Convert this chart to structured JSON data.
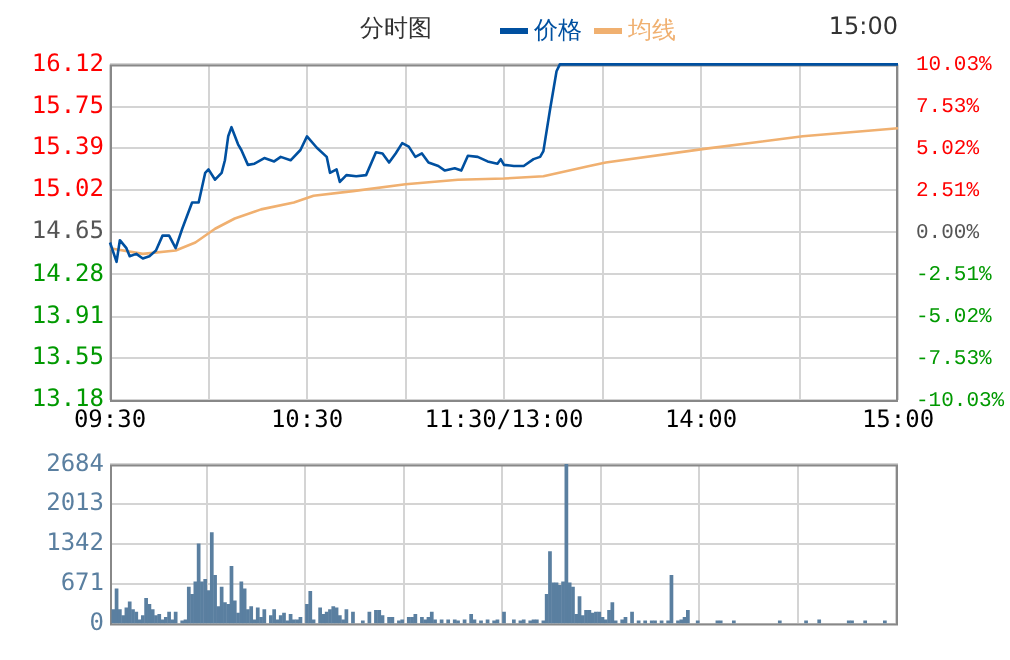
{
  "chart_data": [
    {
      "type": "line",
      "title": "分时图",
      "annotations": [
        "15:00"
      ],
      "legend": "top",
      "grid": true,
      "categories": [
        "09:30",
        null,
        null,
        null,
        null,
        null,
        null,
        null,
        null,
        null,
        null,
        null,
        null,
        null,
        null,
        null,
        null,
        null,
        null,
        null,
        null,
        null,
        null,
        null,
        null,
        null,
        null,
        null,
        null,
        null,
        null,
        null,
        null,
        null,
        null,
        null,
        null,
        null,
        null,
        null,
        null,
        null,
        null,
        null,
        null,
        null,
        null,
        null,
        null,
        null,
        null,
        null,
        null,
        null,
        null,
        null,
        null,
        null,
        null,
        null,
        "10:30",
        null,
        null,
        null,
        null,
        null,
        null,
        null,
        null,
        null,
        null,
        null,
        null,
        null,
        null,
        null,
        null,
        null,
        null,
        null,
        null,
        null,
        null,
        null,
        null,
        null,
        null,
        null,
        null,
        null,
        null,
        null,
        null,
        null,
        null,
        null,
        null,
        null,
        null,
        null,
        null,
        null,
        null,
        null,
        null,
        null,
        null,
        null,
        null,
        null,
        null,
        null,
        null,
        null,
        null,
        null,
        null,
        null,
        null,
        null,
        "11:30/13:00",
        null,
        null,
        null,
        null,
        null,
        null,
        null,
        null,
        null,
        null,
        null,
        null,
        null,
        null,
        null,
        null,
        null,
        null,
        null,
        null,
        null,
        null,
        null,
        null,
        null,
        null,
        null,
        null,
        null,
        null,
        null,
        null,
        null,
        null,
        null,
        null,
        null,
        null,
        null,
        null,
        null,
        null,
        null,
        null,
        null,
        null,
        null,
        null,
        null,
        null,
        null,
        null,
        null,
        null,
        null,
        null,
        null,
        null,
        null,
        "14:00",
        null,
        null,
        null,
        null,
        null,
        null,
        null,
        null,
        null,
        null,
        null,
        null,
        null,
        null,
        null,
        null,
        null,
        null,
        null,
        null,
        null,
        null,
        null,
        null,
        null,
        null,
        null,
        null,
        null,
        null,
        null,
        null,
        null,
        null,
        null,
        null,
        null,
        null,
        null,
        null,
        null,
        null,
        null,
        null,
        null,
        null,
        null,
        null,
        null,
        null,
        null,
        null,
        null,
        null,
        null,
        null,
        null,
        null,
        null,
        "15:00"
      ],
      "ylim": [
        13.18,
        16.12
      ],
      "yticks": [
        13.18,
        13.55,
        13.91,
        14.28,
        14.65,
        15.02,
        15.39,
        15.75,
        16.12
      ],
      "y2lim": [
        -10.03,
        10.03
      ],
      "y2ticks": [
        {
          "value": -10.03,
          "label": "-10.03%"
        },
        {
          "value": -7.53,
          "label": "-7.53%"
        },
        {
          "value": -5.02,
          "label": "-5.02%"
        },
        {
          "value": -2.51,
          "label": "-2.51%"
        },
        {
          "value": 0,
          "label": "0.00%"
        },
        {
          "value": 2.51,
          "label": "2.51%"
        },
        {
          "value": 5.02,
          "label": "5.02%"
        },
        {
          "value": 7.53,
          "label": "7.53%"
        },
        {
          "value": 10.03,
          "label": "10.03%"
        }
      ],
      "series": [
        {
          "name": "价格",
          "color": "#0050a0",
          "values": [
            14.56,
            null,
            14.39,
            14.58,
            null,
            14.51,
            14.44,
            null,
            14.46,
            null,
            14.42,
            null,
            14.44,
            null,
            14.49,
            null,
            14.62,
            null,
            14.62,
            null,
            14.51,
            null,
            14.68,
            null,
            null,
            14.91,
            null,
            14.91,
            null,
            15.17,
            15.2,
            null,
            15.11,
            null,
            15.17,
            15.28,
            15.49,
            15.57,
            null,
            15.42,
            15.37,
            null,
            15.24,
            null,
            15.25,
            null,
            null,
            15.3,
            null,
            null,
            15.27,
            null,
            15.31,
            null,
            null,
            15.28,
            null,
            null,
            15.37,
            null,
            15.49,
            null,
            null,
            15.39,
            null,
            null,
            15.31,
            15.17,
            null,
            15.2,
            15.09,
            null,
            15.15,
            null,
            null,
            15.14,
            null,
            null,
            15.15,
            null,
            null,
            15.35,
            null,
            15.34,
            null,
            15.26,
            null,
            15.34,
            null,
            15.43,
            null,
            15.4,
            null,
            15.31,
            null,
            15.34,
            null,
            15.26,
            null,
            null,
            15.23,
            null,
            15.19,
            null,
            null,
            15.21,
            null,
            15.19,
            null,
            15.32,
            null,
            null,
            15.31,
            null,
            null,
            15.27,
            null,
            null,
            15.25,
            15.29,
            15.24,
            null,
            null,
            15.23,
            null,
            null,
            15.23,
            null,
            null,
            15.29,
            null,
            15.31,
            15.36,
            null,
            15.72,
            null,
            16.06,
            16.12,
            16.12,
            16.12,
            16.12,
            16.12,
            16.12,
            16.12,
            16.12,
            16.12,
            16.12,
            16.12,
            16.12,
            16.12,
            16.12,
            16.12,
            16.12,
            16.12,
            16.12,
            16.12,
            16.12,
            16.12,
            16.12,
            16.12,
            16.12,
            16.12,
            16.12,
            16.12,
            16.12,
            16.12,
            16.12,
            16.12,
            16.12,
            16.12,
            16.12,
            16.12,
            16.12,
            16.12,
            16.12,
            16.12,
            16.12,
            16.12,
            16.12,
            16.12,
            16.12,
            16.12,
            16.12,
            16.12,
            16.12,
            16.12,
            16.12,
            16.12,
            16.12,
            16.12,
            16.12,
            16.12,
            16.12,
            16.12,
            16.12,
            16.12,
            16.12,
            16.12,
            16.12,
            16.12,
            16.12,
            16.12,
            16.12,
            16.12,
            16.12,
            16.12,
            16.12,
            16.12,
            16.12,
            16.12,
            16.12,
            16.12,
            16.12,
            16.12,
            16.12,
            16.12,
            16.12,
            16.12,
            16.12,
            16.12,
            16.12,
            16.12,
            16.12,
            16.12,
            16.12,
            16.12,
            16.12,
            16.12,
            16.12,
            16.12,
            16.12,
            16.12,
            16.12,
            16.12,
            16.12,
            16.12,
            16.12,
            16.12,
            16.12,
            16.12,
            16.12
          ]
        },
        {
          "name": "均线",
          "color": "#f0b070",
          "values": [
            14.51,
            null,
            null,
            null,
            null,
            null,
            null,
            null,
            null,
            null,
            14.46,
            null,
            null,
            null,
            null,
            null,
            null,
            null,
            null,
            null,
            14.49,
            null,
            null,
            null,
            null,
            null,
            14.56,
            null,
            null,
            null,
            null,
            null,
            14.68,
            null,
            null,
            null,
            null,
            null,
            14.77,
            null,
            null,
            null,
            null,
            null,
            null,
            null,
            14.85,
            null,
            null,
            null,
            null,
            null,
            null,
            null,
            null,
            null,
            14.91,
            null,
            null,
            null,
            null,
            null,
            14.97,
            null,
            null,
            null,
            null,
            null,
            null,
            null,
            null,
            null,
            null,
            null,
            15.01,
            null,
            null,
            null,
            null,
            null,
            null,
            null,
            null,
            null,
            null,
            null,
            null,
            null,
            null,
            null,
            15.07,
            null,
            null,
            null,
            null,
            null,
            null,
            null,
            null,
            null,
            null,
            null,
            null,
            null,
            null,
            null,
            15.11,
            null,
            null,
            null,
            null,
            null,
            null,
            null,
            null,
            null,
            null,
            null,
            null,
            null,
            15.12,
            null,
            null,
            null,
            null,
            null,
            null,
            null,
            null,
            null,
            null,
            null,
            15.14,
            null,
            null,
            null,
            null,
            null,
            null,
            null,
            null,
            null,
            null,
            null,
            null,
            null,
            15.23,
            null,
            null,
            null,
            null,
            15.26,
            null,
            null,
            null,
            null,
            null,
            null,
            null,
            null,
            null,
            null,
            null,
            null,
            null,
            null,
            null,
            null,
            null,
            null,
            null,
            null,
            null,
            null,
            null,
            null,
            null,
            null,
            null,
            null,
            null,
            15.38,
            null,
            null,
            null,
            null,
            null,
            null,
            null,
            null,
            null,
            null,
            null,
            null,
            null,
            null,
            null,
            null,
            null,
            null,
            null,
            null,
            null,
            null,
            null,
            null,
            null,
            null,
            null,
            null,
            null,
            15.49,
            null,
            null,
            null,
            null,
            null,
            null,
            null,
            null,
            null,
            null,
            null,
            null,
            null,
            null,
            null,
            null,
            null,
            null,
            null,
            null,
            null,
            null,
            null,
            null,
            null,
            null,
            null,
            null,
            15.56
          ]
        }
      ]
    },
    {
      "type": "bar",
      "grid": true,
      "tick_labels": "y",
      "color": "#5a7fa0",
      "categories": [
        null,
        null,
        null,
        null,
        null,
        null,
        null,
        null,
        null,
        null,
        null,
        null,
        null,
        null,
        null,
        null,
        null,
        null,
        null,
        null,
        null,
        null,
        null,
        null,
        null,
        null,
        null,
        null,
        null,
        null,
        null,
        null,
        null,
        null,
        null,
        null,
        null,
        null,
        null,
        null,
        null,
        null,
        null,
        null,
        null,
        null,
        null,
        null,
        null,
        null,
        null,
        null,
        null,
        null,
        null,
        null,
        null,
        null,
        null,
        null,
        null,
        null,
        null,
        null,
        null,
        null,
        null,
        null,
        null,
        null,
        null,
        null,
        null,
        null,
        null,
        null,
        null,
        null,
        null,
        null,
        null,
        null,
        null,
        null,
        null,
        null,
        null,
        null,
        null,
        null,
        null,
        null,
        null,
        null,
        null,
        null,
        null,
        null,
        null,
        null,
        null,
        null,
        null,
        null,
        null,
        null,
        null,
        null,
        null,
        null,
        null,
        null,
        null,
        null,
        null,
        null,
        null,
        null,
        null,
        null,
        null,
        null,
        null,
        null,
        null,
        null,
        null,
        null,
        null,
        null,
        null,
        null,
        null,
        null,
        null,
        null,
        null,
        null,
        null,
        null,
        null,
        null,
        null,
        null,
        null,
        null,
        null,
        null,
        null,
        null,
        null,
        null,
        null,
        null,
        null,
        null,
        null,
        null,
        null,
        null,
        null,
        null,
        null,
        null,
        null,
        null,
        null,
        null,
        null,
        null,
        null,
        null,
        null,
        null,
        null,
        null,
        null,
        null,
        null,
        null,
        null,
        null,
        null,
        null,
        null,
        null,
        null,
        null,
        null,
        null,
        null,
        null,
        null,
        null,
        null,
        null,
        null,
        null,
        null,
        null,
        null,
        null,
        null,
        null,
        null,
        null,
        null,
        null,
        null,
        null,
        null,
        null,
        null,
        null,
        null,
        null,
        null,
        null,
        null,
        null,
        null,
        null,
        null,
        null,
        null,
        null,
        null,
        null,
        null,
        null,
        null,
        null,
        null,
        null,
        null,
        null,
        null,
        null,
        null,
        null,
        null
      ],
      "ylim": [
        0,
        2684
      ],
      "yticks": [
        0,
        671,
        1342,
        2013,
        2684
      ],
      "values": [
        null,
        230,
        580,
        230,
        130,
        260,
        360,
        230,
        190,
        60,
        130,
        420,
        320,
        230,
        130,
        150,
        60,
        100,
        190,
        60,
        190,
        null,
        40,
        60,
        610,
        490,
        700,
        1340,
        700,
        740,
        550,
        1530,
        810,
        280,
        610,
        350,
        320,
        960,
        380,
        170,
        700,
        580,
        230,
        280,
        60,
        260,
        100,
        230,
        null,
        130,
        230,
        60,
        130,
        170,
        40,
        150,
        60,
        60,
        100,
        null,
        320,
        540,
        60,
        null,
        260,
        150,
        190,
        230,
        280,
        260,
        130,
        60,
        230,
        null,
        190,
        null,
        null,
        40,
        null,
        190,
        null,
        220,
        220,
        130,
        null,
        100,
        100,
        null,
        40,
        60,
        null,
        100,
        100,
        150,
        null,
        100,
        60,
        100,
        190,
        60,
        null,
        60,
        null,
        60,
        null,
        60,
        40,
        null,
        60,
        null,
        150,
        60,
        null,
        40,
        null,
        60,
        null,
        40,
        60,
        null,
        190,
        null,
        null,
        60,
        null,
        40,
        60,
        null,
        40,
        60,
        60,
        null,
        40,
        490,
        1210,
        680,
        680,
        640,
        700,
        2680,
        680,
        610,
        150,
        450,
        130,
        220,
        220,
        170,
        190,
        190,
        100,
        60,
        220,
        350,
        40,
        null,
        60,
        100,
        null,
        190,
        null,
        40,
        null,
        40,
        null,
        40,
        40,
        null,
        40,
        null,
        40,
        810,
        null,
        40,
        60,
        100,
        220,
        null,
        null,
        40,
        null,
        null,
        null,
        null,
        null,
        40,
        40,
        null,
        null,
        null,
        40,
        null,
        null,
        null,
        null,
        null,
        null,
        null,
        null,
        null,
        null,
        null,
        null,
        null,
        40,
        null,
        null,
        null,
        null,
        null,
        null,
        null,
        40,
        null,
        null,
        null,
        60,
        null,
        null,
        null,
        null,
        null,
        null,
        null,
        null,
        40,
        40,
        null,
        null,
        null,
        40,
        null,
        null,
        null,
        null,
        null,
        40,
        null,
        null,
        null,
        null
      ]
    }
  ]
}
